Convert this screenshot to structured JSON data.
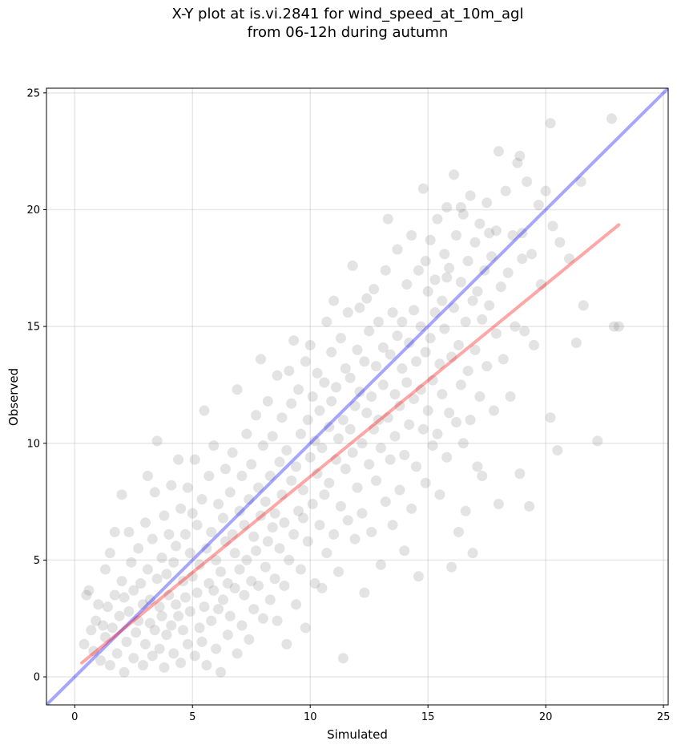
{
  "chart_data": {
    "type": "scatter",
    "title_line1": "X-Y plot at is.vi.2841 for wind_speed_at_10m_agl",
    "title_line2": "from 06-12h during autumn",
    "xlabel": "Simulated",
    "ylabel": "Observed",
    "xlim": [
      -1.2,
      25.2
    ],
    "ylim": [
      -1.2,
      25.2
    ],
    "xticks": [
      0,
      5,
      10,
      15,
      20,
      25
    ],
    "yticks": [
      0,
      5,
      10,
      15,
      20,
      25
    ],
    "grid": true,
    "point_color": "#808080",
    "identity_line": {
      "color": "#0000ff",
      "x": [
        -1.2,
        25.2
      ],
      "y": [
        -1.2,
        25.2
      ]
    },
    "fit_line": {
      "color": "#ff0000",
      "x": [
        0.3,
        23.1
      ],
      "y": [
        0.6,
        19.35
      ]
    },
    "points": [
      [
        0.4,
        1.4
      ],
      [
        0.5,
        3.5
      ],
      [
        0.6,
        3.7
      ],
      [
        0.7,
        2.0
      ],
      [
        0.8,
        1.1
      ],
      [
        0.9,
        2.4
      ],
      [
        1.0,
        3.1
      ],
      [
        1.1,
        0.7
      ],
      [
        1.2,
        2.2
      ],
      [
        1.3,
        1.7
      ],
      [
        1.3,
        4.6
      ],
      [
        1.4,
        3.0
      ],
      [
        1.5,
        0.5
      ],
      [
        1.5,
        5.3
      ],
      [
        1.6,
        2.1
      ],
      [
        1.7,
        3.5
      ],
      [
        1.7,
        6.2
      ],
      [
        1.8,
        1.0
      ],
      [
        1.9,
        2.6
      ],
      [
        2.0,
        4.1
      ],
      [
        2.0,
        7.8
      ],
      [
        2.1,
        0.2
      ],
      [
        2.1,
        3.4
      ],
      [
        2.2,
        1.5
      ],
      [
        2.3,
        6.2
      ],
      [
        2.3,
        2.8
      ],
      [
        2.4,
        4.9
      ],
      [
        2.5,
        0.8
      ],
      [
        2.5,
        3.7
      ],
      [
        2.6,
        1.9
      ],
      [
        2.7,
        5.5
      ],
      [
        2.7,
        2.4
      ],
      [
        2.8,
        4.0
      ],
      [
        2.9,
        0.5
      ],
      [
        2.9,
        3.1
      ],
      [
        3.0,
        6.6
      ],
      [
        3.0,
        1.4
      ],
      [
        3.1,
        4.6
      ],
      [
        3.1,
        8.6
      ],
      [
        3.2,
        2.3
      ],
      [
        3.2,
        3.3
      ],
      [
        3.3,
        0.9
      ],
      [
        3.3,
        5.9
      ],
      [
        3.4,
        7.9
      ],
      [
        3.4,
        2.0
      ],
      [
        3.5,
        4.2
      ],
      [
        3.5,
        10.1
      ],
      [
        3.6,
        1.2
      ],
      [
        3.6,
        3.0
      ],
      [
        3.7,
        5.1
      ],
      [
        3.7,
        2.6
      ],
      [
        3.8,
        6.9
      ],
      [
        3.8,
        0.4
      ],
      [
        3.9,
        4.4
      ],
      [
        3.9,
        1.8
      ],
      [
        4.0,
        3.5
      ],
      [
        4.0,
        6.1
      ],
      [
        4.1,
        2.2
      ],
      [
        4.1,
        8.2
      ],
      [
        4.2,
        4.9
      ],
      [
        4.2,
        1.0
      ],
      [
        4.3,
        3.1
      ],
      [
        4.3,
        5.6
      ],
      [
        4.4,
        9.3
      ],
      [
        4.4,
        2.6
      ],
      [
        4.5,
        7.2
      ],
      [
        4.5,
        0.6
      ],
      [
        4.6,
        4.1
      ],
      [
        4.6,
        2.0
      ],
      [
        4.7,
        6.1
      ],
      [
        4.7,
        3.4
      ],
      [
        4.8,
        8.1
      ],
      [
        4.8,
        1.4
      ],
      [
        4.9,
        5.3
      ],
      [
        4.9,
        2.8
      ],
      [
        5.0,
        7.0
      ],
      [
        5.0,
        4.3
      ],
      [
        5.1,
        0.9
      ],
      [
        5.1,
        9.3
      ],
      [
        5.2,
        3.6
      ],
      [
        5.2,
        6.5
      ],
      [
        5.3,
        2.1
      ],
      [
        5.3,
        4.8
      ],
      [
        5.4,
        1.5
      ],
      [
        5.4,
        7.6
      ],
      [
        5.5,
        3.0
      ],
      [
        5.5,
        11.4
      ],
      [
        5.6,
        5.5
      ],
      [
        5.6,
        0.5
      ],
      [
        5.7,
        4.0
      ],
      [
        5.7,
        8.6
      ],
      [
        5.8,
        2.4
      ],
      [
        5.8,
        6.2
      ],
      [
        5.9,
        3.7
      ],
      [
        5.9,
        9.9
      ],
      [
        6.0,
        1.2
      ],
      [
        6.0,
        5.0
      ],
      [
        6.1,
        7.4
      ],
      [
        6.1,
        2.9
      ],
      [
        6.2,
        4.5
      ],
      [
        6.2,
        0.2
      ],
      [
        6.3,
        6.8
      ],
      [
        6.3,
        3.3
      ],
      [
        6.4,
        8.9
      ],
      [
        6.4,
        5.8
      ],
      [
        6.5,
        1.8
      ],
      [
        6.5,
        4.0
      ],
      [
        6.6,
        7.9
      ],
      [
        6.6,
        2.6
      ],
      [
        6.7,
        6.1
      ],
      [
        6.7,
        9.6
      ],
      [
        6.8,
        3.8
      ],
      [
        6.8,
        5.3
      ],
      [
        6.9,
        12.3
      ],
      [
        6.9,
        1.0
      ],
      [
        7.0,
        7.1
      ],
      [
        7.0,
        4.6
      ],
      [
        7.1,
        2.2
      ],
      [
        7.1,
        8.6
      ],
      [
        7.2,
        6.5
      ],
      [
        7.2,
        3.5
      ],
      [
        7.3,
        10.4
      ],
      [
        7.3,
        5.0
      ],
      [
        7.4,
        7.6
      ],
      [
        7.4,
        1.6
      ],
      [
        7.5,
        4.1
      ],
      [
        7.5,
        9.1
      ],
      [
        7.6,
        6.0
      ],
      [
        7.6,
        2.9
      ],
      [
        7.7,
        11.2
      ],
      [
        7.7,
        5.4
      ],
      [
        7.8,
        8.1
      ],
      [
        7.8,
        3.9
      ],
      [
        7.9,
        13.6
      ],
      [
        7.9,
        6.9
      ],
      [
        8.0,
        2.5
      ],
      [
        8.0,
        9.9
      ],
      [
        8.1,
        4.7
      ],
      [
        8.1,
        7.5
      ],
      [
        8.2,
        5.8
      ],
      [
        8.2,
        11.8
      ],
      [
        8.3,
        3.3
      ],
      [
        8.3,
        8.6
      ],
      [
        8.4,
        6.4
      ],
      [
        8.4,
        10.3
      ],
      [
        8.5,
        4.2
      ],
      [
        8.5,
        7.0
      ],
      [
        8.6,
        12.9
      ],
      [
        8.6,
        2.4
      ],
      [
        8.7,
        9.2
      ],
      [
        8.7,
        5.5
      ],
      [
        8.8,
        7.8
      ],
      [
        8.8,
        11.1
      ],
      [
        8.9,
        3.9
      ],
      [
        8.9,
        6.6
      ],
      [
        9.0,
        9.7
      ],
      [
        9.0,
        1.4
      ],
      [
        9.1,
        13.1
      ],
      [
        9.1,
        5.0
      ],
      [
        9.2,
        8.4
      ],
      [
        9.2,
        11.7
      ],
      [
        9.3,
        6.1
      ],
      [
        9.3,
        14.4
      ],
      [
        9.4,
        3.1
      ],
      [
        9.4,
        9.0
      ],
      [
        9.5,
        7.1
      ],
      [
        9.5,
        12.3
      ],
      [
        9.6,
        4.6
      ],
      [
        9.6,
        10.4
      ],
      [
        9.7,
        6.8
      ],
      [
        9.7,
        8.0
      ],
      [
        9.8,
        13.5
      ],
      [
        9.8,
        2.1
      ],
      [
        9.9,
        11.0
      ],
      [
        9.9,
        5.8
      ],
      [
        10.0,
        9.4
      ],
      [
        10.0,
        14.2
      ],
      [
        10.1,
        7.4
      ],
      [
        10.1,
        12.0
      ],
      [
        10.2,
        4.0
      ],
      [
        10.2,
        10.1
      ],
      [
        10.3,
        8.7
      ],
      [
        10.3,
        13.0
      ],
      [
        10.4,
        6.5
      ],
      [
        10.4,
        11.4
      ],
      [
        10.5,
        3.8
      ],
      [
        10.5,
        9.8
      ],
      [
        10.6,
        12.6
      ],
      [
        10.6,
        7.8
      ],
      [
        10.7,
        15.2
      ],
      [
        10.7,
        5.3
      ],
      [
        10.8,
        10.7
      ],
      [
        10.8,
        8.3
      ],
      [
        10.9,
        13.9
      ],
      [
        10.9,
        11.8
      ],
      [
        11.0,
        6.1
      ],
      [
        11.0,
        16.1
      ],
      [
        11.1,
        9.3
      ],
      [
        11.1,
        12.4
      ],
      [
        11.2,
        4.5
      ],
      [
        11.2,
        10.2
      ],
      [
        11.3,
        14.5
      ],
      [
        11.3,
        7.3
      ],
      [
        11.4,
        11.0
      ],
      [
        11.4,
        0.8
      ],
      [
        11.5,
        13.2
      ],
      [
        11.5,
        8.9
      ],
      [
        11.6,
        15.6
      ],
      [
        11.6,
        6.7
      ],
      [
        11.7,
        10.6
      ],
      [
        11.7,
        12.8
      ],
      [
        11.8,
        17.6
      ],
      [
        11.8,
        9.6
      ],
      [
        11.9,
        11.6
      ],
      [
        11.9,
        5.9
      ],
      [
        12.0,
        14.0
      ],
      [
        12.0,
        8.1
      ],
      [
        12.1,
        12.2
      ],
      [
        12.1,
        15.8
      ],
      [
        12.2,
        10.0
      ],
      [
        12.2,
        7.0
      ],
      [
        12.3,
        13.5
      ],
      [
        12.3,
        3.6
      ],
      [
        12.4,
        11.3
      ],
      [
        12.4,
        16.2
      ],
      [
        12.5,
        9.1
      ],
      [
        12.5,
        14.8
      ],
      [
        12.6,
        6.2
      ],
      [
        12.6,
        12.0
      ],
      [
        12.7,
        10.6
      ],
      [
        12.7,
        16.6
      ],
      [
        12.8,
        8.4
      ],
      [
        12.8,
        13.3
      ],
      [
        12.9,
        11.0
      ],
      [
        12.9,
        15.2
      ],
      [
        13.0,
        4.8
      ],
      [
        13.0,
        9.8
      ],
      [
        13.1,
        14.1
      ],
      [
        13.1,
        12.5
      ],
      [
        13.2,
        7.5
      ],
      [
        13.2,
        17.4
      ],
      [
        13.3,
        11.1
      ],
      [
        13.3,
        19.6
      ],
      [
        13.4,
        9.3
      ],
      [
        13.4,
        13.8
      ],
      [
        13.5,
        15.6
      ],
      [
        13.5,
        6.5
      ],
      [
        13.6,
        12.1
      ],
      [
        13.6,
        10.3
      ],
      [
        13.7,
        14.6
      ],
      [
        13.7,
        18.3
      ],
      [
        13.8,
        8.0
      ],
      [
        13.8,
        11.6
      ],
      [
        13.9,
        15.2
      ],
      [
        13.9,
        13.2
      ],
      [
        14.0,
        5.4
      ],
      [
        14.0,
        9.5
      ],
      [
        14.1,
        16.8
      ],
      [
        14.1,
        12.6
      ],
      [
        14.2,
        10.8
      ],
      [
        14.2,
        14.3
      ],
      [
        14.3,
        18.9
      ],
      [
        14.3,
        7.2
      ],
      [
        14.4,
        11.9
      ],
      [
        14.4,
        15.7
      ],
      [
        14.5,
        13.5
      ],
      [
        14.5,
        9.0
      ],
      [
        14.6,
        17.4
      ],
      [
        14.6,
        4.3
      ],
      [
        14.7,
        12.3
      ],
      [
        14.7,
        15.0
      ],
      [
        14.8,
        10.6
      ],
      [
        14.8,
        20.9
      ],
      [
        14.9,
        13.9
      ],
      [
        14.9,
        8.3
      ],
      [
        15.0,
        16.5
      ],
      [
        15.0,
        11.4
      ],
      [
        15.1,
        18.7
      ],
      [
        15.1,
        14.5
      ],
      [
        15.2,
        9.9
      ],
      [
        15.2,
        12.7
      ],
      [
        15.3,
        17.0
      ],
      [
        15.3,
        15.6
      ],
      [
        15.4,
        10.4
      ],
      [
        15.4,
        19.6
      ],
      [
        15.5,
        13.4
      ],
      [
        15.5,
        7.8
      ],
      [
        15.6,
        16.1
      ],
      [
        15.6,
        12.1
      ],
      [
        15.7,
        18.1
      ],
      [
        15.7,
        14.9
      ],
      [
        15.8,
        9.4
      ],
      [
        15.8,
        20.1
      ],
      [
        15.9,
        11.3
      ],
      [
        15.9,
        17.5
      ],
      [
        16.0,
        13.7
      ],
      [
        16.0,
        4.7
      ],
      [
        16.1,
        15.8
      ],
      [
        16.1,
        21.5
      ],
      [
        16.2,
        10.9
      ],
      [
        16.2,
        18.9
      ],
      [
        16.3,
        14.2
      ],
      [
        16.3,
        6.2
      ],
      [
        16.4,
        16.9
      ],
      [
        16.4,
        12.5
      ],
      [
        16.5,
        19.8
      ],
      [
        16.5,
        10.0
      ],
      [
        16.6,
        15.2
      ],
      [
        16.6,
        7.1
      ],
      [
        16.7,
        17.8
      ],
      [
        16.7,
        13.1
      ],
      [
        16.8,
        20.6
      ],
      [
        16.8,
        11.0
      ],
      [
        16.9,
        16.1
      ],
      [
        16.9,
        5.3
      ],
      [
        17.0,
        18.6
      ],
      [
        17.0,
        14.0
      ],
      [
        17.1,
        9.0
      ],
      [
        17.1,
        16.5
      ],
      [
        17.2,
        19.4
      ],
      [
        17.2,
        12.0
      ],
      [
        17.3,
        15.3
      ],
      [
        17.3,
        8.6
      ],
      [
        17.4,
        17.4
      ],
      [
        17.5,
        20.3
      ],
      [
        17.5,
        13.3
      ],
      [
        17.6,
        15.9
      ],
      [
        17.7,
        18.0
      ],
      [
        17.8,
        11.4
      ],
      [
        17.9,
        19.1
      ],
      [
        17.9,
        14.7
      ],
      [
        18.0,
        22.5
      ],
      [
        18.0,
        7.4
      ],
      [
        18.1,
        16.7
      ],
      [
        18.2,
        13.6
      ],
      [
        18.3,
        20.8
      ],
      [
        18.4,
        17.3
      ],
      [
        18.5,
        12.0
      ],
      [
        18.6,
        18.9
      ],
      [
        18.7,
        15.0
      ],
      [
        18.8,
        22.0
      ],
      [
        18.9,
        8.7
      ],
      [
        19.0,
        17.9
      ],
      [
        19.1,
        14.8
      ],
      [
        19.2,
        21.2
      ],
      [
        19.3,
        7.3
      ],
      [
        19.4,
        18.1
      ],
      [
        19.5,
        14.2
      ],
      [
        19.7,
        20.2
      ],
      [
        19.8,
        16.8
      ],
      [
        20.0,
        20.8
      ],
      [
        20.2,
        11.1
      ],
      [
        20.3,
        19.3
      ],
      [
        20.5,
        9.7
      ],
      [
        20.6,
        18.6
      ],
      [
        21.0,
        17.9
      ],
      [
        21.3,
        14.3
      ],
      [
        21.5,
        21.2
      ],
      [
        21.6,
        15.9
      ],
      [
        22.2,
        10.1
      ],
      [
        22.8,
        23.9
      ],
      [
        22.9,
        15.0
      ],
      [
        23.1,
        15.0
      ],
      [
        20.2,
        23.7
      ],
      [
        18.9,
        22.3
      ],
      [
        19.0,
        19.0
      ],
      [
        17.6,
        19.0
      ],
      [
        16.4,
        20.1
      ],
      [
        15.8,
        17.1
      ],
      [
        14.9,
        17.8
      ]
    ]
  }
}
